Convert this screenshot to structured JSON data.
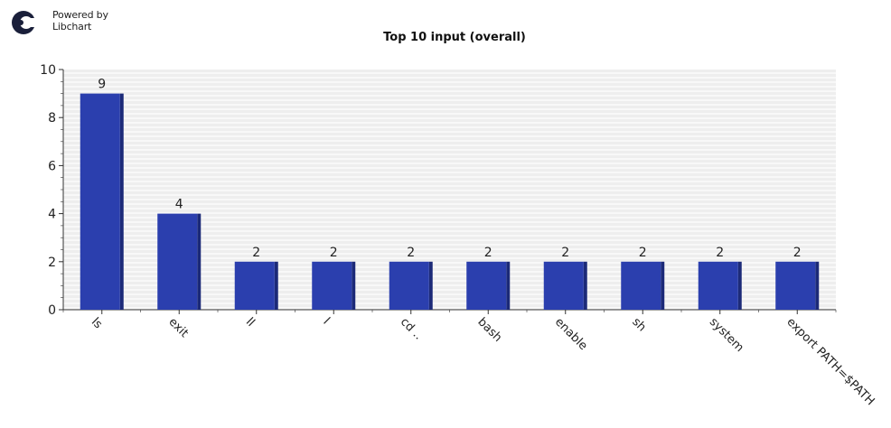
{
  "branding": {
    "line1": "Powered by",
    "line2": "Libchart"
  },
  "colors": {
    "bar": "#2b3fae",
    "bar_shadow": "#1c2a78",
    "plot_bg": "#eeeeee",
    "grid": "#ffffff",
    "axis": "#333333"
  },
  "chart_data": {
    "type": "bar",
    "title": "Top 10 input (overall)",
    "xlabel": "",
    "ylabel": "",
    "ylim": [
      0,
      10
    ],
    "yticks": [
      0,
      2,
      4,
      6,
      8,
      10
    ],
    "categories": [
      "ls",
      "exit",
      "ll",
      "l",
      "cd ..",
      "bash",
      "enable",
      "sh",
      "system",
      "export PATH=$PATH"
    ],
    "values": [
      9,
      4,
      2,
      2,
      2,
      2,
      2,
      2,
      2,
      2
    ],
    "grid": true,
    "legend": "none"
  }
}
